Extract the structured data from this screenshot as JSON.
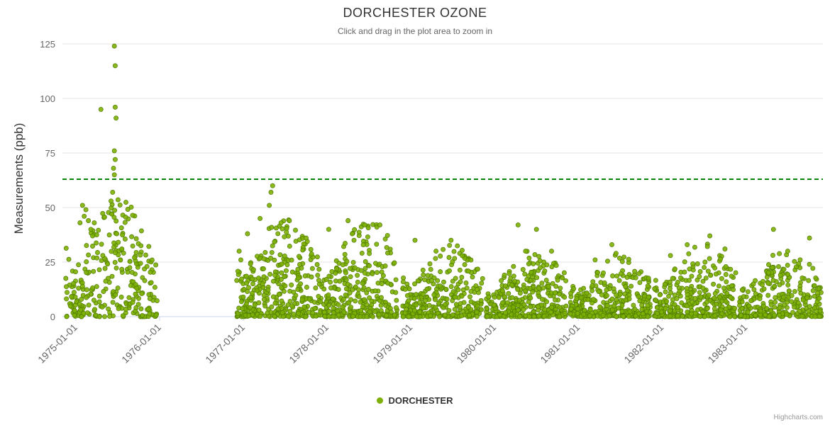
{
  "credits": "Highcharts.com",
  "chart_data": {
    "type": "scatter",
    "title": "DORCHESTER OZONE",
    "subtitle": "Click and drag in the plot area to zoom in",
    "xlabel": "",
    "ylabel": "Measurements (ppb)",
    "series_name": "DORCHESTER",
    "color": "#7db004",
    "point_stroke": "#4e7a00",
    "threshold_line": {
      "value": 63,
      "color": "#068206",
      "style": "dashed"
    },
    "yaxis": {
      "min": 0,
      "max": 125,
      "ticks": [
        0,
        25,
        50,
        75,
        100,
        125
      ]
    },
    "xaxis": {
      "min": 1974.84,
      "max": 1983.92,
      "tick_years": [
        1975,
        1976,
        1977,
        1978,
        1979,
        1980,
        1981,
        1982,
        1983
      ],
      "tick_labels": [
        "1975-01-01",
        "1976-01-01",
        "1977-01-01",
        "1978-01-01",
        "1979-01-01",
        "1980-01-01",
        "1981-01-01",
        "1982-01-01",
        "1983-01-01"
      ]
    },
    "legend_position": "bottom-center",
    "grid": "horizontal",
    "seed": 7,
    "clusters": [
      {
        "x_start": 1974.88,
        "x_end": 1975.97,
        "count": 280,
        "y_max": 55,
        "skew": 1.9
      },
      {
        "x_start": 1976.92,
        "x_end": 1977.94,
        "count": 330,
        "y_max": 46,
        "skew": 1.9
      },
      {
        "x_start": 1977.96,
        "x_end": 1978.84,
        "count": 300,
        "y_max": 44,
        "skew": 2.0
      },
      {
        "x_start": 1978.9,
        "x_end": 1979.86,
        "count": 300,
        "y_max": 33,
        "skew": 2.1
      },
      {
        "x_start": 1979.9,
        "x_end": 1980.86,
        "count": 330,
        "y_max": 32,
        "skew": 2.2
      },
      {
        "x_start": 1980.9,
        "x_end": 1981.86,
        "count": 330,
        "y_max": 29,
        "skew": 2.2
      },
      {
        "x_start": 1981.9,
        "x_end": 1982.88,
        "count": 320,
        "y_max": 34,
        "skew": 2.1
      },
      {
        "x_start": 1982.92,
        "x_end": 1983.9,
        "count": 300,
        "y_max": 32,
        "skew": 2.1
      }
    ],
    "outliers": [
      [
        1975.05,
        43
      ],
      [
        1975.08,
        51
      ],
      [
        1975.1,
        46
      ],
      [
        1975.12,
        49
      ],
      [
        1975.15,
        44
      ],
      [
        1975.18,
        40
      ],
      [
        1975.2,
        37
      ],
      [
        1975.22,
        43
      ],
      [
        1975.3,
        95
      ],
      [
        1975.42,
        53
      ],
      [
        1975.43,
        47
      ],
      [
        1975.44,
        57
      ],
      [
        1975.45,
        68
      ],
      [
        1975.46,
        124
      ],
      [
        1975.46,
        76
      ],
      [
        1975.46,
        65
      ],
      [
        1975.47,
        115
      ],
      [
        1975.47,
        96
      ],
      [
        1975.47,
        72
      ],
      [
        1975.48,
        91
      ],
      [
        1975.55,
        31
      ],
      [
        1975.7,
        27
      ],
      [
        1975.85,
        23
      ],
      [
        1976.95,
        30
      ],
      [
        1976.97,
        26
      ],
      [
        1977.05,
        38
      ],
      [
        1977.2,
        45
      ],
      [
        1977.31,
        51
      ],
      [
        1977.33,
        57
      ],
      [
        1977.35,
        60
      ],
      [
        1977.45,
        43
      ],
      [
        1977.55,
        44
      ],
      [
        1977.75,
        36
      ],
      [
        1978.02,
        40
      ],
      [
        1978.25,
        44
      ],
      [
        1978.3,
        38
      ],
      [
        1978.45,
        42
      ],
      [
        1978.63,
        42
      ],
      [
        1979.05,
        35
      ],
      [
        1979.3,
        30
      ],
      [
        1979.48,
        35
      ],
      [
        1980.28,
        42
      ],
      [
        1980.5,
        40
      ],
      [
        1980.68,
        30
      ],
      [
        1981.2,
        26
      ],
      [
        1981.4,
        33
      ],
      [
        1981.45,
        29
      ],
      [
        1982.1,
        28
      ],
      [
        1982.3,
        33
      ],
      [
        1982.57,
        37
      ],
      [
        1982.75,
        31
      ],
      [
        1983.33,
        40
      ],
      [
        1983.5,
        30
      ],
      [
        1983.76,
        36
      ]
    ]
  }
}
